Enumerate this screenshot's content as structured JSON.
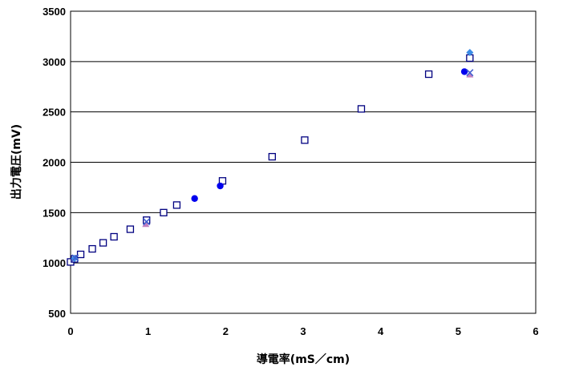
{
  "chart_data": {
    "type": "scatter",
    "title": "",
    "xlabel": "導電率(mS／cm)",
    "ylabel": "出力電圧(mV)",
    "xlim": [
      0,
      6
    ],
    "ylim": [
      500,
      3500
    ],
    "x_ticks": [
      "0",
      "1",
      "2",
      "3",
      "4",
      "5",
      "6"
    ],
    "y_ticks": [
      "500",
      "1000",
      "1500",
      "2000",
      "2500",
      "3000",
      "3500"
    ],
    "grid": "horizontal",
    "legend": "none",
    "series": [
      {
        "marker": "open-square",
        "color": "#000080",
        "points": [
          [
            0.0,
            1010
          ],
          [
            0.05,
            1040
          ],
          [
            0.13,
            1085
          ],
          [
            0.28,
            1140
          ],
          [
            0.42,
            1200
          ],
          [
            0.56,
            1260
          ],
          [
            0.77,
            1335
          ],
          [
            0.98,
            1425
          ],
          [
            1.2,
            1500
          ],
          [
            1.37,
            1575
          ],
          [
            1.96,
            1815
          ],
          [
            2.6,
            2055
          ],
          [
            3.02,
            2220
          ],
          [
            3.75,
            2530
          ],
          [
            4.62,
            2875
          ],
          [
            5.15,
            3035
          ]
        ]
      },
      {
        "marker": "filled-circle",
        "color": "#0000ee",
        "points": [
          [
            1.6,
            1640
          ],
          [
            1.93,
            1765
          ],
          [
            5.08,
            2900
          ]
        ]
      },
      {
        "marker": "diamond",
        "color": "#3c8ce6",
        "points": [
          [
            0.05,
            1045
          ],
          [
            5.15,
            3090
          ]
        ]
      },
      {
        "marker": "triangle",
        "color": "#c080c0",
        "points": [
          [
            0.97,
            1385
          ],
          [
            5.15,
            2870
          ]
        ]
      },
      {
        "marker": "x",
        "color": "#4060d0",
        "points": [
          [
            0.06,
            1050
          ],
          [
            0.98,
            1410
          ],
          [
            5.15,
            2890
          ]
        ]
      }
    ]
  }
}
